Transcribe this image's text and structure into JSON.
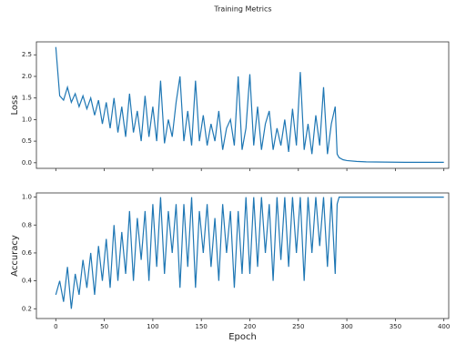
{
  "title": "Training Metrics",
  "chart_data": [
    {
      "type": "line",
      "y_label": "Loss",
      "color": "#1f77b4",
      "x": [
        0,
        4,
        8,
        12,
        16,
        20,
        24,
        28,
        32,
        36,
        40,
        44,
        48,
        52,
        56,
        60,
        64,
        68,
        72,
        76,
        80,
        84,
        88,
        92,
        96,
        100,
        104,
        108,
        112,
        116,
        120,
        124,
        128,
        132,
        136,
        140,
        144,
        148,
        152,
        156,
        160,
        164,
        168,
        172,
        176,
        180,
        184,
        188,
        192,
        196,
        200,
        204,
        208,
        212,
        216,
        220,
        224,
        228,
        232,
        236,
        240,
        244,
        248,
        252,
        256,
        260,
        264,
        268,
        272,
        276,
        280,
        284,
        288,
        290,
        292,
        296,
        300,
        310,
        320,
        340,
        360,
        380,
        400
      ],
      "values": [
        2.68,
        1.55,
        1.45,
        1.75,
        1.4,
        1.6,
        1.3,
        1.55,
        1.25,
        1.5,
        1.1,
        1.45,
        0.9,
        1.4,
        0.8,
        1.5,
        0.7,
        1.3,
        0.6,
        1.6,
        0.7,
        1.2,
        0.5,
        1.55,
        0.6,
        1.3,
        0.5,
        1.9,
        0.45,
        1.0,
        0.6,
        1.4,
        2.0,
        0.5,
        1.2,
        0.4,
        1.9,
        0.5,
        1.1,
        0.4,
        0.9,
        0.5,
        1.2,
        0.3,
        0.8,
        1.0,
        0.4,
        2.0,
        0.3,
        0.8,
        2.05,
        0.4,
        1.3,
        0.3,
        0.9,
        1.2,
        0.3,
        0.8,
        0.4,
        1.0,
        0.25,
        1.25,
        0.4,
        2.1,
        0.3,
        0.9,
        0.2,
        1.1,
        0.4,
        1.75,
        0.2,
        0.9,
        1.3,
        0.2,
        0.12,
        0.07,
        0.05,
        0.03,
        0.02,
        0.015,
        0.01,
        0.01,
        0.01
      ],
      "xlim": [
        -20,
        405
      ],
      "ylim": [
        -0.13,
        2.8
      ],
      "yticks": [
        {
          "value": 0,
          "label": "0.0"
        },
        0.5,
        {
          "value": 1,
          "label": "1.0"
        },
        1.5,
        {
          "value": 2,
          "label": "2.0"
        },
        2.5
      ]
    },
    {
      "type": "line",
      "y_label": "Accuracy",
      "x_label": "Epoch",
      "color": "#1f77b4",
      "x": [
        0,
        4,
        8,
        12,
        16,
        20,
        24,
        28,
        32,
        36,
        40,
        44,
        48,
        52,
        56,
        60,
        64,
        68,
        72,
        76,
        80,
        84,
        88,
        92,
        96,
        100,
        104,
        108,
        112,
        116,
        120,
        124,
        128,
        132,
        136,
        140,
        144,
        148,
        152,
        156,
        160,
        164,
        168,
        172,
        176,
        180,
        184,
        188,
        192,
        196,
        200,
        204,
        208,
        212,
        216,
        220,
        224,
        228,
        232,
        236,
        240,
        244,
        248,
        252,
        256,
        260,
        264,
        268,
        272,
        276,
        280,
        284,
        288,
        290,
        292,
        296,
        300,
        310,
        320,
        340,
        360,
        380,
        400
      ],
      "values": [
        0.3,
        0.4,
        0.25,
        0.5,
        0.2,
        0.45,
        0.3,
        0.55,
        0.35,
        0.6,
        0.3,
        0.65,
        0.4,
        0.7,
        0.35,
        0.8,
        0.4,
        0.75,
        0.45,
        0.9,
        0.4,
        0.85,
        0.55,
        0.9,
        0.4,
        0.95,
        0.5,
        1.0,
        0.45,
        0.9,
        0.6,
        0.95,
        0.35,
        0.95,
        0.5,
        1.0,
        0.35,
        0.9,
        0.6,
        0.95,
        0.5,
        0.85,
        0.4,
        0.95,
        0.6,
        0.9,
        0.35,
        0.9,
        0.45,
        1.0,
        0.45,
        1.0,
        0.5,
        1.0,
        0.6,
        0.95,
        0.4,
        1.0,
        0.55,
        1.0,
        0.5,
        1.0,
        0.6,
        1.0,
        0.4,
        1.0,
        0.6,
        1.0,
        0.65,
        1.0,
        0.5,
        1.0,
        0.45,
        0.95,
        1.0,
        1.0,
        1.0,
        1.0,
        1.0,
        1.0,
        1.0,
        1.0,
        1.0
      ],
      "xlim": [
        -20,
        405
      ],
      "ylim": [
        0.13,
        1.03
      ],
      "xticks": [
        0,
        50,
        100,
        150,
        200,
        250,
        300,
        350,
        400
      ],
      "yticks": [
        0.2,
        0.4,
        0.6,
        0.8,
        {
          "value": 1,
          "label": "1.0"
        }
      ]
    }
  ]
}
